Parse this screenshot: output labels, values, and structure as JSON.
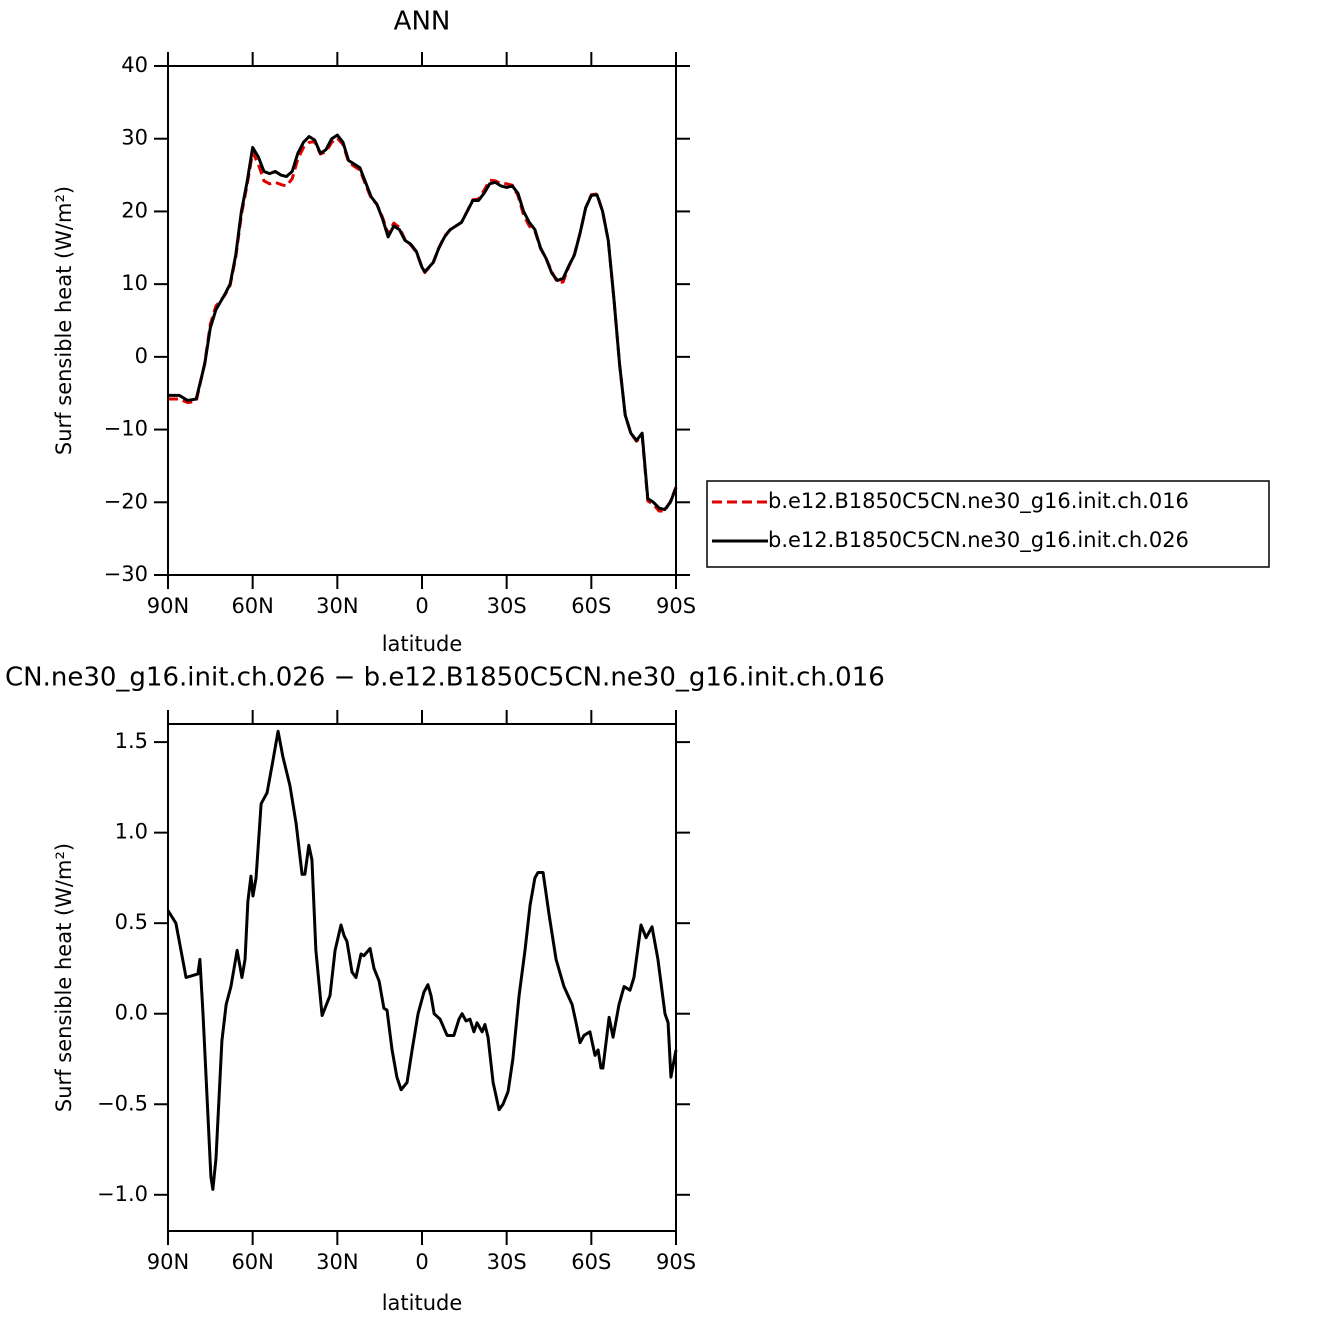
{
  "chart_data": [
    {
      "type": "line",
      "title": "ANN",
      "xlabel": "latitude",
      "ylabel": "Surf sensible heat (W/m²)",
      "x": [
        90,
        86,
        83,
        80,
        77,
        75,
        73,
        70,
        68,
        66,
        64,
        62,
        60,
        58,
        56,
        54,
        52,
        50,
        48,
        46,
        44,
        42,
        40,
        38,
        36,
        34,
        32,
        30,
        28,
        26,
        24,
        22,
        20,
        18,
        16,
        14,
        12,
        10,
        8,
        6,
        4,
        2,
        0,
        -1,
        -4,
        -6,
        -8,
        -10,
        -12,
        -14,
        -16,
        -18,
        -20,
        -22,
        -24,
        -26,
        -28,
        -30,
        -32,
        -34,
        -36,
        -38,
        -40,
        -42,
        -44,
        -46,
        -48,
        -50,
        -52,
        -54,
        -56,
        -58,
        -60,
        -62,
        -64,
        -66,
        -68,
        -70,
        -72,
        -74,
        -76,
        -78,
        -80,
        -82,
        -84,
        -86,
        -88,
        -90
      ],
      "series": [
        {
          "name": "b.e12.B1850C5CN.ne30_g16.init.ch.016",
          "color": "#e00000",
          "dash": "dashed",
          "values": [
            -5.8,
            -5.8,
            -6.3,
            -6.1,
            -0.9,
            4.5,
            7,
            8.4,
            9.8,
            13.7,
            19.5,
            23.6,
            28.1,
            26.5,
            24.2,
            23.8,
            24,
            23.7,
            23.5,
            24.5,
            27.2,
            28.8,
            29.5,
            29.6,
            27.9,
            28.2,
            29.5,
            30.1,
            29.2,
            26.8,
            26.2,
            25.7,
            23.7,
            21.8,
            21,
            19.2,
            16.9,
            18.4,
            17.8,
            16.1,
            15.4,
            14.4,
            12.3,
            11.6,
            13,
            15,
            16.6,
            17.5,
            18,
            18.5,
            20,
            21.6,
            21.7,
            22.9,
            24.3,
            24.2,
            23.8,
            23.8,
            23.6,
            22.2,
            19.5,
            18,
            17.3,
            14.9,
            13.5,
            11.7,
            10.2,
            10.3,
            12.4,
            14.1,
            17,
            20.5,
            22.3,
            22.4,
            20,
            16,
            8,
            -1,
            -8,
            -10.5,
            -11.6,
            -10.8,
            -19.8,
            -20.3,
            -21.2,
            -21.2,
            -19.9,
            -17.9
          ]
        },
        {
          "name": "b.e12.B1850C5CN.ne30_g16.init.ch.026",
          "color": "#000000",
          "dash": "solid",
          "values": [
            -5.3,
            -5.3,
            -6.0,
            -5.8,
            -1,
            4,
            6.5,
            8.5,
            10,
            14,
            20,
            24,
            28.8,
            27.5,
            25.5,
            25.2,
            25.5,
            25,
            24.8,
            25.5,
            28,
            29.5,
            30.3,
            29.8,
            28,
            28.5,
            30,
            30.5,
            29.5,
            27,
            26.5,
            26,
            24,
            22,
            21,
            19,
            16.5,
            18,
            17.5,
            16,
            15.5,
            14.5,
            12.3,
            11.7,
            13,
            15,
            16.5,
            17.5,
            18,
            18.5,
            20,
            21.5,
            21.5,
            22.5,
            23.8,
            24,
            23.5,
            23.3,
            23.5,
            22.5,
            20,
            18.5,
            17.5,
            15,
            13.5,
            11.5,
            10.5,
            10.8,
            12.5,
            14,
            17,
            20.5,
            22.2,
            22.3,
            20,
            16,
            8,
            -1,
            -8,
            -10.5,
            -11.5,
            -10.5,
            -19.5,
            -20,
            -20.8,
            -21,
            -20,
            -18
          ]
        }
      ],
      "xlim": [
        90,
        -90
      ],
      "xticks": [
        {
          "value": 90,
          "label": "90N"
        },
        {
          "value": 60,
          "label": "60N"
        },
        {
          "value": 30,
          "label": "30N"
        },
        0,
        {
          "value": -30,
          "label": "30S"
        },
        {
          "value": -60,
          "label": "60S"
        },
        {
          "value": -90,
          "label": "90S"
        }
      ],
      "ylim": [
        -30,
        40
      ],
      "yticks": [
        {
          "value": -30,
          "label": "−30"
        },
        {
          "value": -20,
          "label": "−20"
        },
        {
          "value": -10,
          "label": "−10"
        },
        0,
        10,
        20,
        30,
        40
      ],
      "legend": "right"
    },
    {
      "type": "line",
      "title": "CN.ne30_g16.init.ch.026 − b.e12.B1850C5CN.ne30_g16.init.ch.016",
      "xlabel": "latitude",
      "ylabel": "Surf sensible heat (W/m²)",
      "x": [
        90,
        87.2,
        83.6,
        79.4,
        78.7,
        77.6,
        74.8,
        74.1,
        73,
        70.9,
        69.4,
        67.7,
        65.5,
        63.8,
        62.7,
        61.7,
        60.6,
        59.9,
        58.8,
        57,
        54.9,
        52.8,
        51,
        49.3,
        46.8,
        44.6,
        42.5,
        41.5,
        40.1,
        39,
        37.6,
        35.4,
        32.6,
        30.8,
        28.7,
        27.6,
        26.6,
        24.8,
        23.4,
        21.6,
        20.6,
        18.4,
        17,
        15.2,
        13.5,
        12.4,
        10.6,
        8.9,
        7.4,
        5.3,
        3.5,
        1.4,
        -0.7,
        -2.1,
        -3.2,
        -4.3,
        -6.4,
        -8.9,
        -11.3,
        -13.1,
        -14.2,
        -15.6,
        -17,
        -18.4,
        -19.5,
        -21.3,
        -22.3,
        -23.4,
        -25.2,
        -27.3,
        -28.7,
        -30.5,
        -32.2,
        -34.4,
        -36.5,
        -38.3,
        -40,
        -41.1,
        -42.9,
        -45,
        -47.5,
        -50.3,
        -53.2,
        -54.6,
        -56,
        -57.4,
        -59.5,
        -61.3,
        -62.4,
        -63.4,
        -64.1,
        -66.3,
        -67.7,
        -69.8,
        -71.6,
        -73.7,
        -75.1,
        -77.6,
        -79.4,
        -81.5,
        -83.6,
        -86.1,
        -87.2,
        -88.2,
        -90
      ],
      "series": [
        {
          "color": "#000000",
          "dash": "solid",
          "values": [
            0.57,
            0.5,
            0.2,
            0.22,
            0.3,
            0.0,
            -0.9,
            -0.97,
            -0.8,
            -0.15,
            0.05,
            0.15,
            0.35,
            0.2,
            0.3,
            0.62,
            0.76,
            0.65,
            0.75,
            1.16,
            1.22,
            1.4,
            1.56,
            1.42,
            1.26,
            1.05,
            0.77,
            0.77,
            0.93,
            0.85,
            0.35,
            -0.01,
            0.1,
            0.35,
            0.49,
            0.43,
            0.4,
            0.23,
            0.2,
            0.33,
            0.32,
            0.36,
            0.25,
            0.18,
            0.03,
            0.02,
            -0.2,
            -0.35,
            -0.42,
            -0.38,
            -0.2,
            0.0,
            0.12,
            0.16,
            0.1,
            0.0,
            -0.03,
            -0.12,
            -0.12,
            -0.03,
            0.0,
            -0.04,
            -0.03,
            -0.1,
            -0.05,
            -0.1,
            -0.06,
            -0.13,
            -0.38,
            -0.53,
            -0.5,
            -0.43,
            -0.25,
            0.1,
            0.35,
            0.6,
            0.75,
            0.78,
            0.78,
            0.55,
            0.3,
            0.15,
            0.05,
            -0.05,
            -0.16,
            -0.12,
            -0.1,
            -0.23,
            -0.2,
            -0.3,
            -0.3,
            -0.02,
            -0.13,
            0.05,
            0.15,
            0.13,
            0.2,
            0.49,
            0.42,
            0.48,
            0.3,
            0.0,
            -0.05,
            -0.35,
            -0.2
          ]
        }
      ],
      "xlim": [
        90,
        -90
      ],
      "xticks": [
        {
          "value": 90,
          "label": "90N"
        },
        {
          "value": 60,
          "label": "60N"
        },
        {
          "value": 30,
          "label": "30N"
        },
        0,
        {
          "value": -30,
          "label": "30S"
        },
        {
          "value": -60,
          "label": "60S"
        },
        {
          "value": -90,
          "label": "90S"
        }
      ],
      "ylim": [
        -1.2,
        1.6
      ],
      "yticks": [
        {
          "value": -1,
          "label": "−1.0"
        },
        {
          "value": -0.5,
          "label": "−0.5"
        },
        {
          "value": 0,
          "label": "0.0"
        },
        0.5,
        {
          "value": 1,
          "label": "1.0"
        },
        1.5
      ]
    }
  ]
}
